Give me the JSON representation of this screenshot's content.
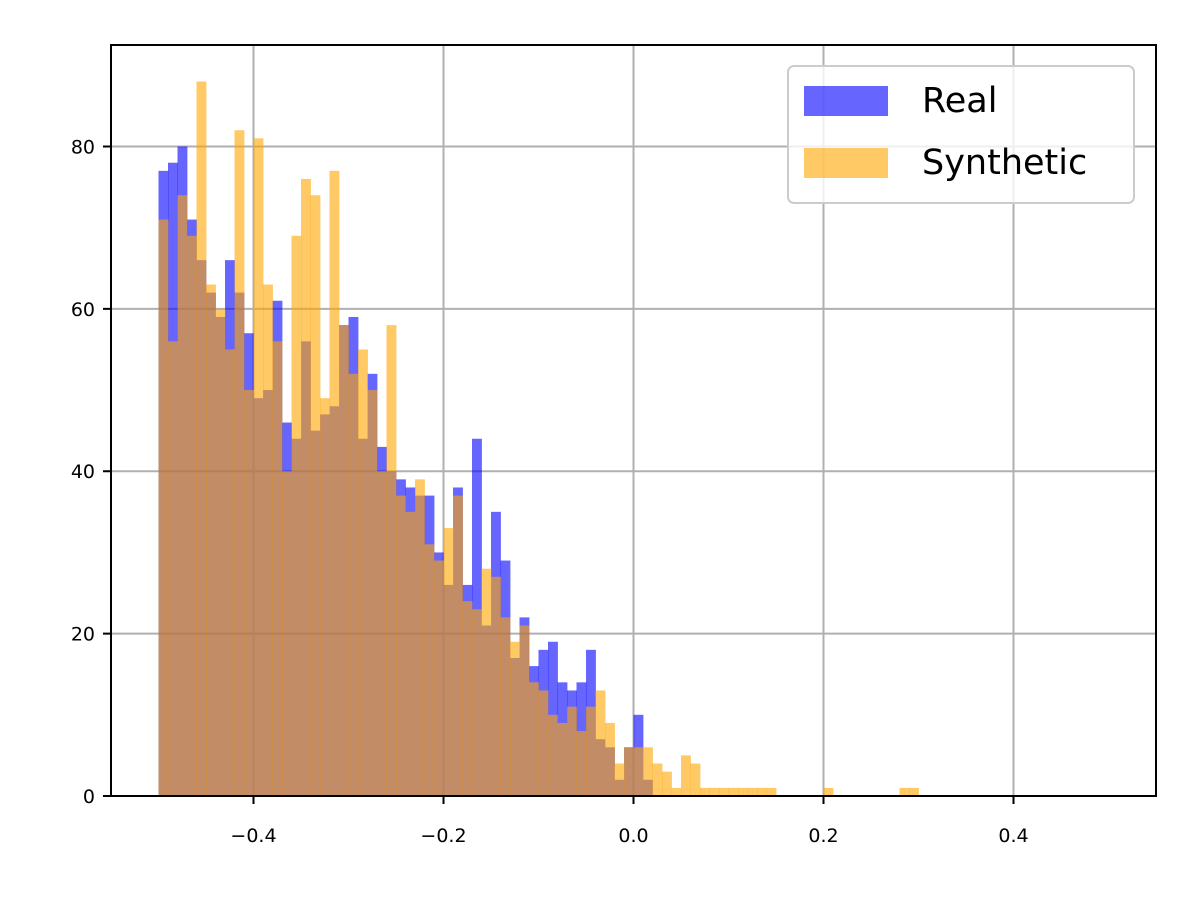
{
  "chart_data": {
    "type": "bar",
    "title": "",
    "xlabel": "",
    "ylabel": "",
    "xlim": [
      -0.55,
      0.55
    ],
    "ylim": [
      0,
      92.5
    ],
    "bin_start": -0.5,
    "bin_width": 0.01,
    "xticks": [
      -0.4,
      -0.2,
      0.0,
      0.2,
      0.4
    ],
    "xtick_labels": [
      "−0.4",
      "−0.2",
      "0.0",
      "0.2",
      "0.4"
    ],
    "yticks": [
      0,
      20,
      40,
      60,
      80
    ],
    "ytick_labels": [
      "0",
      "20",
      "40",
      "60",
      "80"
    ],
    "grid": true,
    "legend_position": "top-right",
    "series": [
      {
        "name": "Real",
        "color": "#0000ff",
        "opacity": 0.6,
        "values": [
          77,
          78,
          80,
          71,
          66,
          62,
          59,
          66,
          62,
          57,
          49,
          50,
          61,
          46,
          44,
          56,
          45,
          47,
          48,
          58,
          59,
          44,
          52,
          43,
          40,
          39,
          38,
          37,
          37,
          30,
          26,
          38,
          26,
          44,
          21,
          35,
          29,
          17,
          22,
          16,
          18,
          19,
          14,
          13,
          14,
          18,
          7,
          6,
          2,
          6,
          10,
          2,
          0,
          0,
          0,
          0,
          0,
          0,
          0,
          0,
          0,
          0,
          0,
          0,
          0,
          0,
          0,
          0,
          0,
          0,
          0,
          0,
          0,
          0,
          0,
          0,
          0,
          0,
          0,
          0,
          0,
          0,
          0,
          0,
          0,
          0,
          0,
          0,
          0,
          0,
          0,
          0,
          0,
          0,
          0,
          0,
          0,
          0,
          0,
          0
        ]
      },
      {
        "name": "Synthetic",
        "color": "#ffa500",
        "opacity": 0.6,
        "values": [
          71,
          56,
          74,
          69,
          88,
          63,
          60,
          55,
          82,
          50,
          81,
          63,
          56,
          40,
          69,
          76,
          74,
          49,
          77,
          58,
          52,
          55,
          50,
          40,
          58,
          37,
          35,
          39,
          31,
          29,
          33,
          37,
          24,
          23,
          28,
          27,
          22,
          19,
          21,
          14,
          13,
          10,
          9,
          11,
          8,
          11,
          13,
          9,
          4,
          6,
          6,
          6,
          4,
          3,
          1,
          5,
          4,
          1,
          1,
          1,
          1,
          1,
          1,
          1,
          1,
          0,
          0,
          0,
          0,
          0,
          1,
          0,
          0,
          0,
          0,
          0,
          0,
          0,
          1,
          1,
          0,
          0,
          0,
          0,
          0,
          0,
          0,
          0,
          0,
          0,
          0,
          0,
          0,
          0,
          0,
          0,
          0,
          0,
          0,
          0
        ]
      }
    ]
  }
}
